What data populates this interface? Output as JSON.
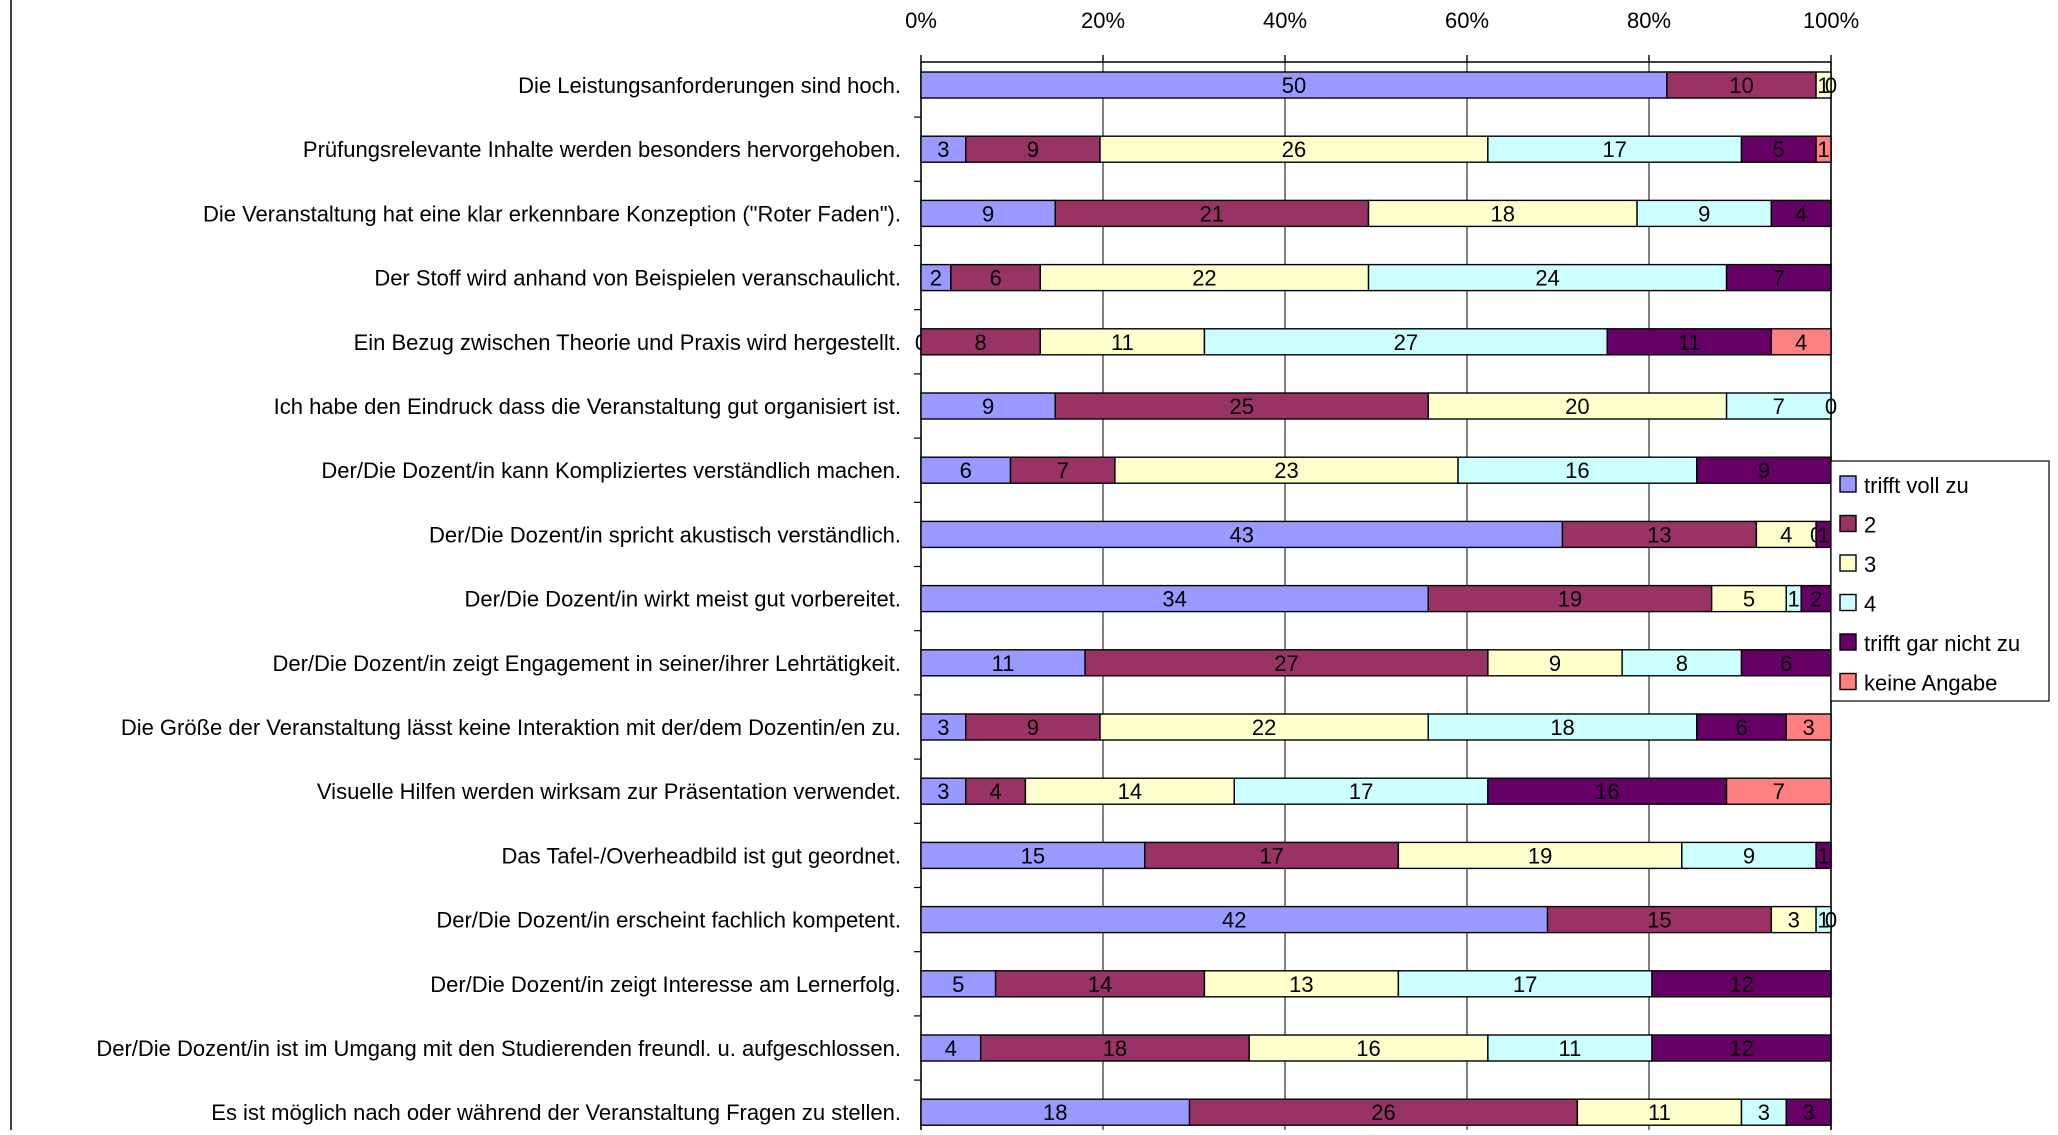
{
  "chart_data": {
    "type": "bar",
    "orientation": "horizontal",
    "stacked": "percent",
    "xlim": [
      0,
      100
    ],
    "x_ticks": [
      "0%",
      "20%",
      "40%",
      "60%",
      "80%",
      "100%"
    ],
    "x_tick_values": [
      0,
      20,
      40,
      60,
      80,
      100
    ],
    "axis_position": "top",
    "grid": true,
    "legend_position": "right",
    "categories": [
      "Die Leistungsanforderungen sind hoch.",
      "Prüfungsrelevante Inhalte werden besonders hervorgehoben.",
      "Die Veranstaltung hat eine klar erkennbare Konzeption (\"Roter Faden\").",
      "Der Stoff wird anhand von Beispielen veranschaulicht.",
      "Ein Bezug zwischen Theorie und Praxis wird hergestellt.",
      "Ich habe den Eindruck dass die Veranstaltung gut organisiert ist.",
      "Der/Die Dozent/in kann Kompliziertes verständlich machen.",
      "Der/Die Dozent/in spricht akustisch verständlich.",
      "Der/Die Dozent/in wirkt meist gut vorbereitet.",
      "Der/Die Dozent/in zeigt Engagement in seiner/ihrer Lehrtätigkeit.",
      "Die Größe der Veranstaltung lässt keine Interaktion mit der/dem Dozentin/en zu.",
      "Visuelle Hilfen werden wirksam zur Präsentation verwendet.",
      "Das Tafel-/Overheadbild ist gut geordnet.",
      "Der/Die Dozent/in erscheint fachlich kompetent.",
      "Der/Die Dozent/in zeigt Interesse am Lernerfolg.",
      "Der/Die Dozent/in ist im Umgang mit den Studierenden freundl. u. aufgeschlossen.",
      "Es ist möglich nach oder während der Veranstaltung Fragen zu stellen."
    ],
    "series": [
      {
        "name": "trifft voll zu",
        "color": "#9999ff",
        "values": [
          50,
          3,
          9,
          2,
          0,
          9,
          6,
          43,
          34,
          11,
          3,
          3,
          15,
          42,
          5,
          4,
          18
        ]
      },
      {
        "name": "2",
        "color": "#993366",
        "values": [
          10,
          9,
          21,
          6,
          8,
          25,
          7,
          13,
          19,
          27,
          9,
          4,
          17,
          15,
          14,
          18,
          26
        ]
      },
      {
        "name": "3",
        "color": "#ffffcc",
        "values": [
          1,
          26,
          18,
          22,
          11,
          20,
          23,
          4,
          5,
          9,
          22,
          14,
          19,
          3,
          13,
          16,
          11
        ]
      },
      {
        "name": "4",
        "color": "#ccffff",
        "values": [
          0,
          17,
          9,
          24,
          27,
          7,
          16,
          0,
          1,
          8,
          18,
          17,
          9,
          1,
          17,
          11,
          3
        ]
      },
      {
        "name": "trifft gar nicht zu",
        "color": "#660066",
        "values": [
          0,
          5,
          4,
          7,
          11,
          0,
          9,
          1,
          2,
          6,
          6,
          16,
          1,
          0,
          12,
          12,
          3
        ]
      },
      {
        "name": "keine Angabe",
        "color": "#ff8080",
        "values": [
          0,
          1,
          0,
          0,
          4,
          0,
          0,
          0,
          0,
          0,
          3,
          7,
          0,
          0,
          0,
          0,
          0
        ]
      }
    ],
    "data_labels": [
      [
        "50",
        "10",
        "1",
        "0",
        "",
        ""
      ],
      [
        "3",
        "9",
        "26",
        "17",
        "5",
        "1"
      ],
      [
        "9",
        "21",
        "18",
        "9",
        "4",
        ""
      ],
      [
        "2",
        "6",
        "22",
        "24",
        "7",
        ""
      ],
      [
        "0",
        "8",
        "11",
        "27",
        "11",
        "4"
      ],
      [
        "9",
        "25",
        "20",
        "7",
        "0",
        ""
      ],
      [
        "6",
        "7",
        "23",
        "16",
        "9",
        ""
      ],
      [
        "43",
        "13",
        "4",
        "0",
        "1",
        ""
      ],
      [
        "34",
        "19",
        "5",
        "1",
        "2",
        ""
      ],
      [
        "11",
        "27",
        "9",
        "8",
        "6",
        ""
      ],
      [
        "3",
        "9",
        "22",
        "18",
        "6",
        "3"
      ],
      [
        "3",
        "4",
        "14",
        "17",
        "16",
        "7"
      ],
      [
        "15",
        "17",
        "19",
        "9",
        "1",
        ""
      ],
      [
        "42",
        "15",
        "3",
        "1",
        "0",
        ""
      ],
      [
        "5",
        "14",
        "13",
        "17",
        "12",
        ""
      ],
      [
        "4",
        "18",
        "16",
        "11",
        "12",
        ""
      ],
      [
        "18",
        "26",
        "11",
        "3",
        "3",
        ""
      ]
    ]
  }
}
